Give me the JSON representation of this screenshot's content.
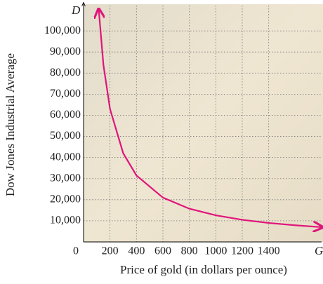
{
  "chart_data": {
    "type": "line",
    "x_axis_symbol": "D",
    "y_axis_symbol_x": "G",
    "xlabel": "Price of gold (in dollars per ounce)",
    "ylabel": "Dow Jones Industrial Average",
    "x": [
      115,
      150,
      200,
      300,
      400,
      600,
      800,
      1000,
      1200,
      1400,
      1600,
      1800
    ],
    "series": [
      {
        "color": "#e0157a",
        "values": [
          110000,
          84000,
          63000,
          42000,
          31500,
          21000,
          15750,
          12600,
          10500,
          9000,
          7900,
          7000
        ]
      }
    ],
    "xlim": [
      0,
      1800
    ],
    "ylim": [
      0,
      112000
    ],
    "xticks": [
      0,
      200,
      400,
      600,
      800,
      1000,
      1200,
      1400
    ],
    "yticks": [
      {
        "value": 10000,
        "label": "10,000"
      },
      {
        "value": 20000,
        "label": "20,000"
      },
      {
        "value": 30000,
        "label": "30,000"
      },
      {
        "value": 40000,
        "label": "40,000"
      },
      {
        "value": 50000,
        "label": "50,000"
      },
      {
        "value": 60000,
        "label": "60,000"
      },
      {
        "value": 70000,
        "label": "70,000"
      },
      {
        "value": 80000,
        "label": "80,000"
      },
      {
        "value": 90000,
        "label": "90,000"
      },
      {
        "value": 100000,
        "label": "100,000"
      }
    ],
    "grid": true
  }
}
